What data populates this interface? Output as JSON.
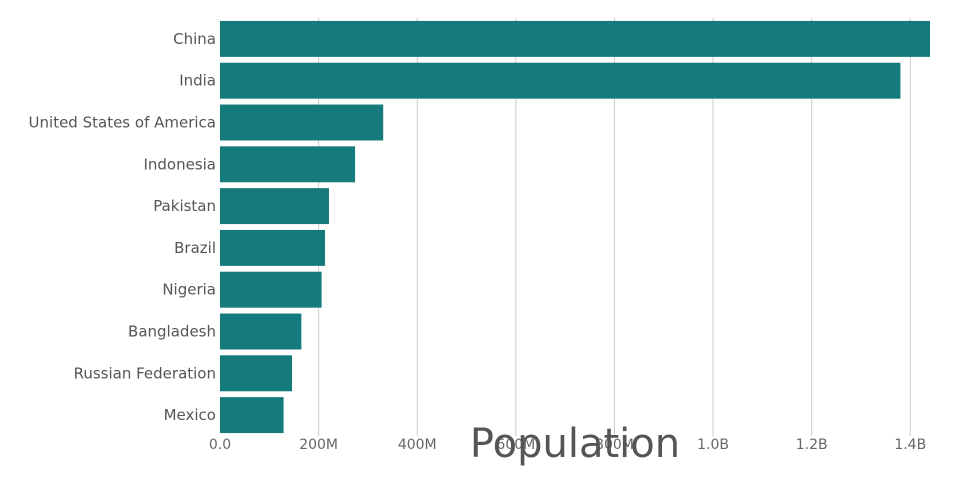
{
  "chart_data": {
    "type": "bar",
    "orientation": "horizontal",
    "categories": [
      "China",
      "India",
      "United States of America",
      "Indonesia",
      "Pakistan",
      "Brazil",
      "Nigeria",
      "Bangladesh",
      "Russian Federation",
      "Mexico"
    ],
    "values": [
      1440000000,
      1380000000,
      331000000,
      274000000,
      221000000,
      213000000,
      206000000,
      165000000,
      146000000,
      129000000
    ],
    "xlabel": "Population",
    "ylabel": "",
    "xlim": [
      0,
      1440000000
    ],
    "xticks": [
      0,
      200000000,
      400000000,
      600000000,
      800000000,
      1000000000,
      1200000000,
      1400000000
    ],
    "xtick_labels": [
      "0.0",
      "200M",
      "400M",
      "600M",
      "800M",
      "1.0B",
      "1.2B",
      "1.4B"
    ],
    "grid": "vertical",
    "colors": {
      "bar": "#147a7c",
      "grid": "#cccccc",
      "text": "#555555"
    }
  }
}
